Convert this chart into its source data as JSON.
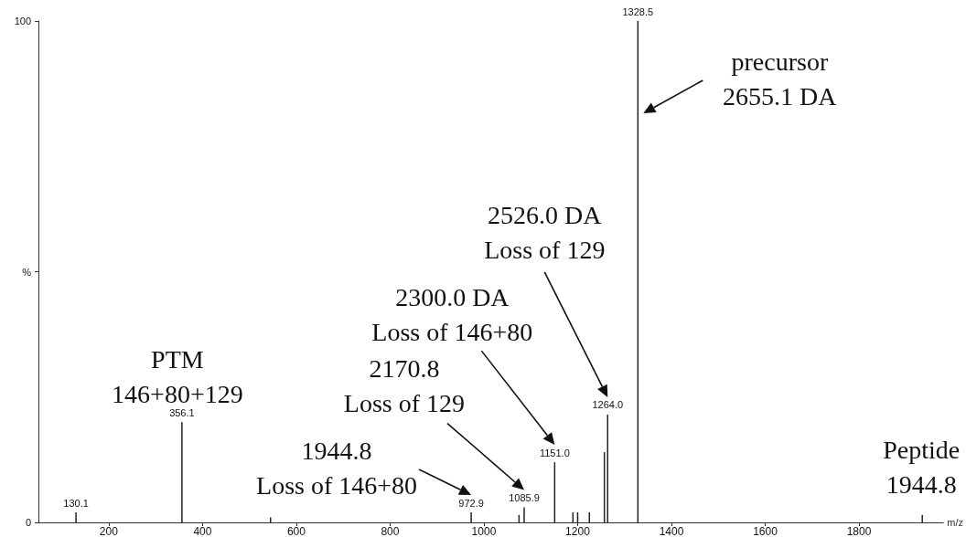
{
  "chart_data": {
    "type": "bar",
    "xlabel": "m/z",
    "x": [
      130.1,
      356.1,
      545,
      972.9,
      1075,
      1085.9,
      1151.0,
      1190,
      1200,
      1225,
      1257,
      1264.0,
      1328.5,
      1935
    ],
    "values": [
      2,
      20,
      1,
      2,
      1.5,
      3,
      12,
      2,
      2,
      2,
      14,
      21.5,
      100,
      1.5
    ],
    "color": "#222222",
    "xlim": [
      50,
      1980
    ],
    "xticks": [
      200,
      400,
      600,
      800,
      1000,
      1200,
      1400,
      1600,
      1800
    ],
    "ylim": [
      0,
      100
    ],
    "yticks": [
      0,
      {
        "value": 50,
        "label": "%"
      },
      100
    ],
    "grid": false,
    "annotations": [
      "precursor\n2655.1 DA",
      "2526.0 DA\nLoss of 129",
      "2300.0 DA\nLoss of 146+80",
      "2170.8\nLoss of 129",
      "1944.8\nLoss of 146+80",
      {
        "text": "PTM\n146+80+129",
        "x": 356.1,
        "y": 20
      },
      {
        "text": "Peptide\n1944.8",
        "x": 1935,
        "y": 1.5
      },
      {
        "text": "130.1",
        "x": 130.1,
        "y": 2
      },
      {
        "text": "356.1",
        "x": 356.1,
        "y": 20
      },
      {
        "text": "972.9",
        "x": 972.9,
        "y": 2
      },
      {
        "text": "1085.9",
        "x": 1085.9,
        "y": 3
      },
      {
        "text": "1151.0",
        "x": 1151.0,
        "y": 12
      },
      {
        "text": "1264.0",
        "x": 1264.0,
        "y": 21.5
      },
      {
        "text": "1328.5",
        "x": 1328.5,
        "y": 100
      }
    ]
  }
}
